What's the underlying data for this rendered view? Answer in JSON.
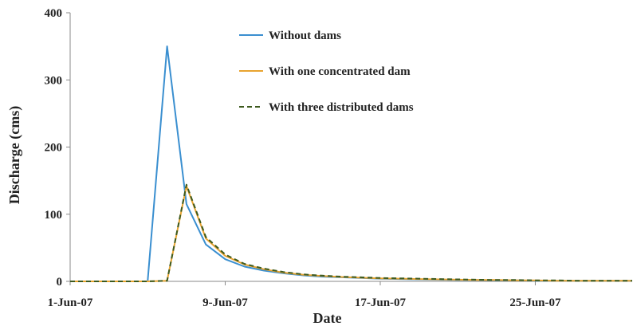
{
  "chart_data": {
    "type": "line",
    "xlabel": "Date",
    "ylabel": "Discharge (cms)",
    "ylim": [
      0,
      400
    ],
    "yticks": [
      0,
      100,
      200,
      300,
      400
    ],
    "xlim": [
      "2007-06-01",
      "2007-06-30"
    ],
    "xticks": [
      {
        "date": "2007-06-01",
        "label": "1-Jun-07"
      },
      {
        "date": "2007-06-09",
        "label": "9-Jun-07"
      },
      {
        "date": "2007-06-17",
        "label": "17-Jun-07"
      },
      {
        "date": "2007-06-25",
        "label": "25-Jun-07"
      }
    ],
    "grid": false,
    "legend": "top-center",
    "series": [
      {
        "name": "Without dams",
        "color": "#3a8fd0",
        "dash": "solid",
        "points": [
          [
            "2007-06-01",
            0
          ],
          [
            "2007-06-02",
            0
          ],
          [
            "2007-06-03",
            0
          ],
          [
            "2007-06-04",
            0
          ],
          [
            "2007-06-05",
            0
          ],
          [
            "2007-06-06",
            350
          ],
          [
            "2007-06-07",
            115
          ],
          [
            "2007-06-08",
            55
          ],
          [
            "2007-06-09",
            33
          ],
          [
            "2007-06-10",
            22
          ],
          [
            "2007-06-11",
            16
          ],
          [
            "2007-06-12",
            12
          ],
          [
            "2007-06-13",
            9
          ],
          [
            "2007-06-14",
            7
          ],
          [
            "2007-06-15",
            6
          ],
          [
            "2007-06-16",
            5
          ],
          [
            "2007-06-17",
            4
          ],
          [
            "2007-06-18",
            3.5
          ],
          [
            "2007-06-19",
            3
          ],
          [
            "2007-06-20",
            2.5
          ],
          [
            "2007-06-21",
            2
          ],
          [
            "2007-06-22",
            2
          ],
          [
            "2007-06-23",
            1.5
          ],
          [
            "2007-06-24",
            1.5
          ],
          [
            "2007-06-25",
            1
          ],
          [
            "2007-06-26",
            1
          ],
          [
            "2007-06-27",
            1
          ],
          [
            "2007-06-28",
            1
          ],
          [
            "2007-06-29",
            1
          ],
          [
            "2007-06-30",
            1
          ]
        ]
      },
      {
        "name": "With one concentrated dam",
        "color": "#e8a330",
        "dash": "solid",
        "points": [
          [
            "2007-06-01",
            0
          ],
          [
            "2007-06-02",
            0
          ],
          [
            "2007-06-03",
            0
          ],
          [
            "2007-06-04",
            0
          ],
          [
            "2007-06-05",
            0
          ],
          [
            "2007-06-06",
            1
          ],
          [
            "2007-06-07",
            142
          ],
          [
            "2007-06-08",
            64
          ],
          [
            "2007-06-09",
            38
          ],
          [
            "2007-06-10",
            25
          ],
          [
            "2007-06-11",
            18
          ],
          [
            "2007-06-12",
            13
          ],
          [
            "2007-06-13",
            10
          ],
          [
            "2007-06-14",
            8
          ],
          [
            "2007-06-15",
            6.5
          ],
          [
            "2007-06-16",
            5.5
          ],
          [
            "2007-06-17",
            4.5
          ],
          [
            "2007-06-18",
            4
          ],
          [
            "2007-06-19",
            3.5
          ],
          [
            "2007-06-20",
            3
          ],
          [
            "2007-06-21",
            2.5
          ],
          [
            "2007-06-22",
            2
          ],
          [
            "2007-06-23",
            2
          ],
          [
            "2007-06-24",
            1.5
          ],
          [
            "2007-06-25",
            1.5
          ],
          [
            "2007-06-26",
            1
          ],
          [
            "2007-06-27",
            1
          ],
          [
            "2007-06-28",
            1
          ],
          [
            "2007-06-29",
            1
          ],
          [
            "2007-06-30",
            1
          ]
        ]
      },
      {
        "name": "With three distributed dams",
        "color": "#3d5a1e",
        "dash": "dashed",
        "points": [
          [
            "2007-06-01",
            0
          ],
          [
            "2007-06-02",
            0
          ],
          [
            "2007-06-03",
            0
          ],
          [
            "2007-06-04",
            0
          ],
          [
            "2007-06-05",
            0
          ],
          [
            "2007-06-06",
            1
          ],
          [
            "2007-06-07",
            144
          ],
          [
            "2007-06-08",
            66
          ],
          [
            "2007-06-09",
            40
          ],
          [
            "2007-06-10",
            26
          ],
          [
            "2007-06-11",
            19
          ],
          [
            "2007-06-12",
            14
          ],
          [
            "2007-06-13",
            10.5
          ],
          [
            "2007-06-14",
            8.5
          ],
          [
            "2007-06-15",
            7
          ],
          [
            "2007-06-16",
            6
          ],
          [
            "2007-06-17",
            5
          ],
          [
            "2007-06-18",
            4.5
          ],
          [
            "2007-06-19",
            4
          ],
          [
            "2007-06-20",
            3.5
          ],
          [
            "2007-06-21",
            3
          ],
          [
            "2007-06-22",
            2.5
          ],
          [
            "2007-06-23",
            2
          ],
          [
            "2007-06-24",
            2
          ],
          [
            "2007-06-25",
            1.5
          ],
          [
            "2007-06-26",
            1.5
          ],
          [
            "2007-06-27",
            1
          ],
          [
            "2007-06-28",
            1
          ],
          [
            "2007-06-29",
            1
          ],
          [
            "2007-06-30",
            1
          ]
        ]
      }
    ]
  }
}
